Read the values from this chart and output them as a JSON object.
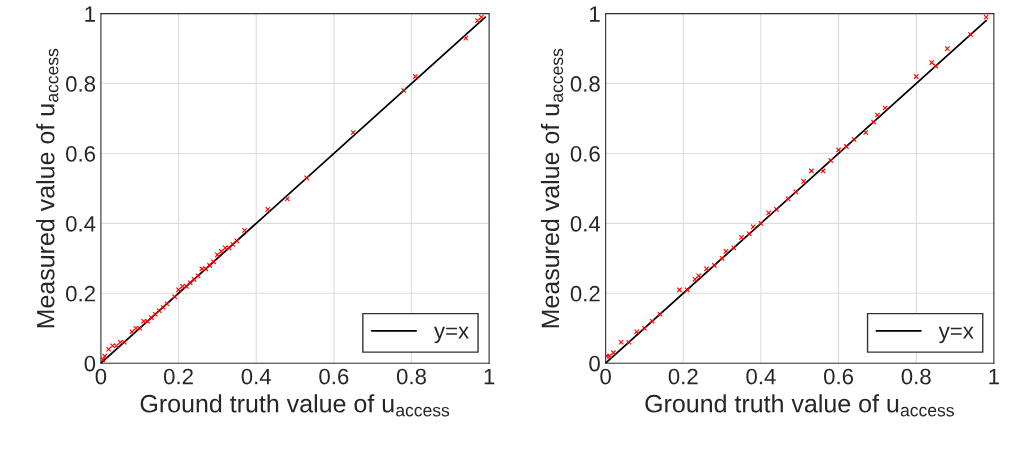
{
  "chart_data": [
    {
      "type": "scatter",
      "xlabel": "Ground truth value of u$_{access}$",
      "ylabel": "Measured value of u$_{access}$",
      "xlim": [
        0,
        1
      ],
      "ylim": [
        0,
        1
      ],
      "xticks": [
        0,
        0.2,
        0.4,
        0.6,
        0.8,
        1
      ],
      "yticks": [
        0,
        0.2,
        0.4,
        0.6,
        0.8,
        1
      ],
      "grid": true,
      "legend": "bottom right",
      "series": [
        {
          "color": "#ff0000",
          "marker": "cross",
          "x": [
            0.005,
            0.01,
            0.02,
            0.03,
            0.04,
            0.05,
            0.06,
            0.08,
            0.09,
            0.1,
            0.11,
            0.12,
            0.13,
            0.14,
            0.15,
            0.16,
            0.17,
            0.19,
            0.2,
            0.21,
            0.22,
            0.23,
            0.24,
            0.25,
            0.26,
            0.27,
            0.28,
            0.29,
            0.3,
            0.31,
            0.32,
            0.33,
            0.34,
            0.35,
            0.37,
            0.43,
            0.48,
            0.53,
            0.65,
            0.78,
            0.81,
            0.94,
            0.97,
            0.98
          ],
          "values": [
            0.01,
            0.02,
            0.04,
            0.05,
            0.05,
            0.06,
            0.06,
            0.09,
            0.1,
            0.1,
            0.12,
            0.12,
            0.13,
            0.14,
            0.15,
            0.16,
            0.17,
            0.19,
            0.21,
            0.22,
            0.22,
            0.23,
            0.24,
            0.25,
            0.27,
            0.27,
            0.28,
            0.29,
            0.31,
            0.32,
            0.33,
            0.33,
            0.34,
            0.35,
            0.38,
            0.44,
            0.47,
            0.53,
            0.66,
            0.78,
            0.82,
            0.93,
            0.98,
            0.99
          ]
        },
        {
          "type": "line",
          "name": "y=x",
          "color": "#000000",
          "marker": "none",
          "x": [
            0,
            0.99
          ],
          "values": [
            0,
            0.99
          ]
        }
      ]
    },
    {
      "type": "scatter",
      "xlabel": "Ground truth value of u$_{access}$",
      "ylabel": "Measured value of u$_{access}$",
      "xlim": [
        0,
        1
      ],
      "ylim": [
        0,
        1
      ],
      "xticks": [
        0,
        0.2,
        0.4,
        0.6,
        0.8,
        1
      ],
      "yticks": [
        0,
        0.2,
        0.4,
        0.6,
        0.8,
        1
      ],
      "grid": true,
      "legend": "bottom right",
      "series": [
        {
          "color": "#ff0000",
          "marker": "cross",
          "x": [
            0.003,
            0.01,
            0.02,
            0.04,
            0.06,
            0.08,
            0.1,
            0.12,
            0.14,
            0.19,
            0.21,
            0.23,
            0.24,
            0.26,
            0.28,
            0.3,
            0.31,
            0.33,
            0.35,
            0.37,
            0.38,
            0.4,
            0.42,
            0.44,
            0.47,
            0.49,
            0.51,
            0.53,
            0.56,
            0.58,
            0.6,
            0.62,
            0.64,
            0.67,
            0.69,
            0.7,
            0.72,
            0.8,
            0.84,
            0.85,
            0.88,
            0.94,
            0.98
          ],
          "values": [
            0.02,
            0.02,
            0.03,
            0.06,
            0.06,
            0.09,
            0.1,
            0.12,
            0.14,
            0.21,
            0.21,
            0.24,
            0.25,
            0.27,
            0.28,
            0.3,
            0.32,
            0.33,
            0.36,
            0.37,
            0.39,
            0.4,
            0.43,
            0.44,
            0.47,
            0.49,
            0.52,
            0.55,
            0.55,
            0.58,
            0.61,
            0.62,
            0.64,
            0.66,
            0.69,
            0.71,
            0.73,
            0.82,
            0.86,
            0.85,
            0.9,
            0.94,
            0.99
          ]
        },
        {
          "type": "line",
          "name": "y=x",
          "color": "#000000",
          "marker": "none",
          "x": [
            0,
            0.98
          ],
          "values": [
            0,
            0.98
          ]
        }
      ]
    }
  ]
}
